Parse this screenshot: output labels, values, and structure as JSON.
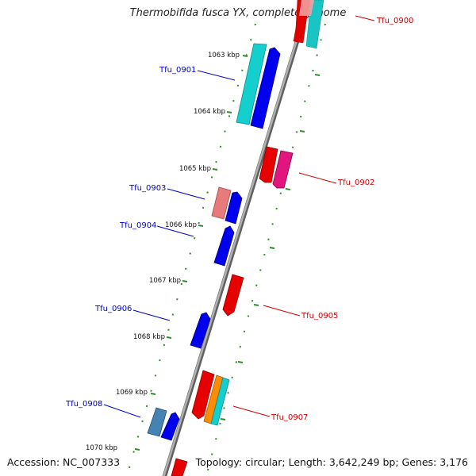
{
  "title": "Thermobifida fusca YX, complete genome",
  "accession": "Accession: NC_007333",
  "topology_line": "Topology: circular; Length: 3,642,249 bp; Genes: 3,176",
  "colors": {
    "backbone": "#8a8a8a",
    "tick": "#2e8b2e",
    "forward_label": "#0000cc",
    "reverse_label": "#cc0000"
  },
  "scale": [
    {
      "label": "1063 kbp"
    },
    {
      "label": "1064 kbp"
    },
    {
      "label": "1065 kbp"
    },
    {
      "label": "1066 kbp"
    },
    {
      "label": "1067 kbp"
    },
    {
      "label": "1068 kbp"
    },
    {
      "label": "1069 kbp"
    },
    {
      "label": "1070 kbp"
    }
  ],
  "genes": [
    {
      "name": "Tfu_0900",
      "strand": "reverse",
      "labeled": true
    },
    {
      "name": "Tfu_0901",
      "strand": "forward",
      "labeled": true
    },
    {
      "name": "Tfu_0902",
      "strand": "reverse",
      "labeled": true
    },
    {
      "name": "Tfu_0903",
      "strand": "forward",
      "labeled": true
    },
    {
      "name": "Tfu_0904",
      "strand": "forward",
      "labeled": true
    },
    {
      "name": "Tfu_0905",
      "strand": "reverse",
      "labeled": true
    },
    {
      "name": "Tfu_0906",
      "strand": "forward",
      "labeled": true
    },
    {
      "name": "Tfu_0907",
      "strand": "reverse",
      "labeled": true
    },
    {
      "name": "Tfu_0908",
      "strand": "forward",
      "labeled": true
    }
  ]
}
